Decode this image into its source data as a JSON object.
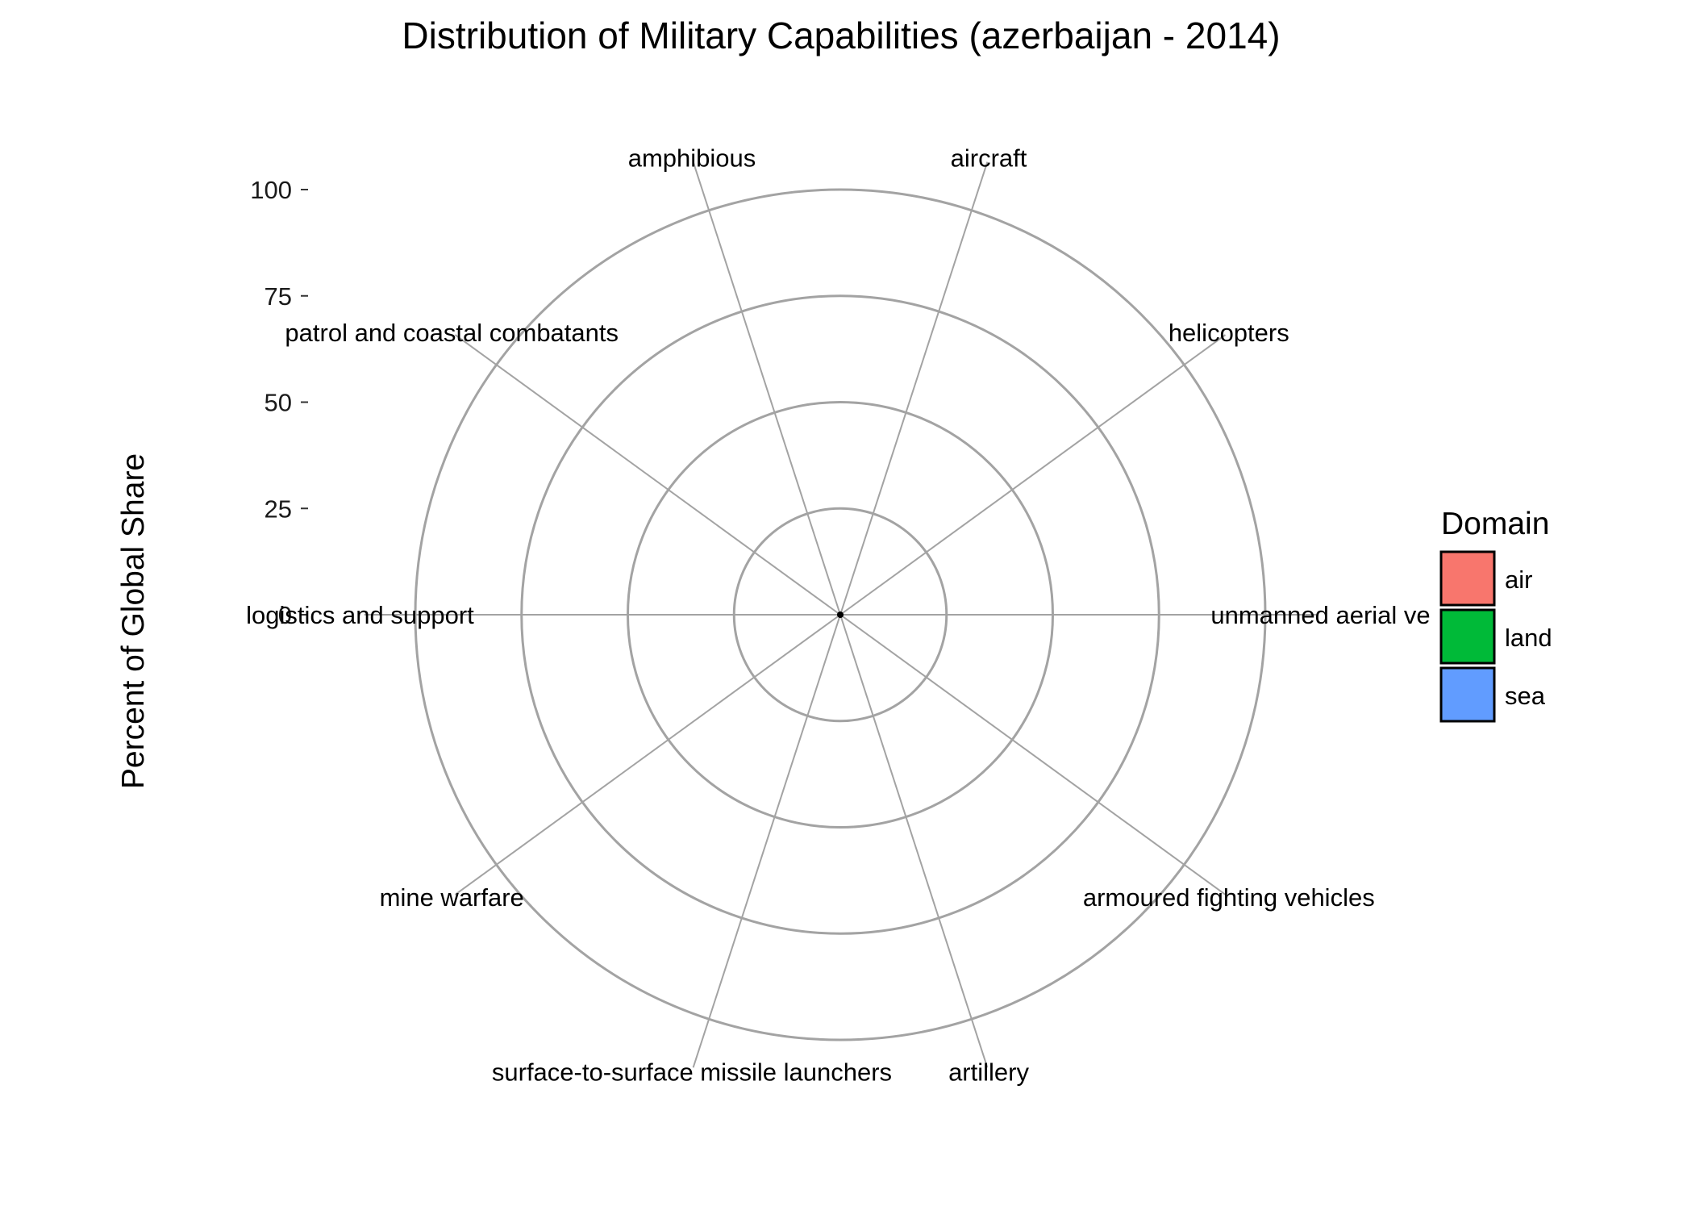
{
  "chart_data": {
    "type": "bar",
    "coord": "polar",
    "title": "Distribution of Military Capabilities (azerbaijan - 2014)",
    "xlabel": "",
    "ylabel": "Percent of Global Share",
    "ylim": [
      0,
      100
    ],
    "y_ticks": [
      "0",
      "25",
      "50",
      "75",
      "100"
    ],
    "y_tick_values": [
      0,
      25,
      50,
      75,
      100
    ],
    "categories": [
      "aircraft",
      "helicopters",
      "unmanned aerial ve",
      "armoured fighting vehicles",
      "artillery",
      "surface-to-surface missile launchers",
      "mine warfare",
      "logistics and support",
      "patrol and coastal combatants",
      "amphibious"
    ],
    "domains": [
      "air",
      "air",
      "air",
      "land",
      "land",
      "land",
      "sea",
      "sea",
      "sea",
      "sea"
    ],
    "values": [
      0,
      0,
      0,
      0,
      0,
      0,
      0,
      0,
      0,
      0
    ],
    "legend": {
      "title": "Domain",
      "position": "right",
      "entries": [
        {
          "label": "air",
          "color": "#F8766D"
        },
        {
          "label": "land",
          "color": "#00BA38"
        },
        {
          "label": "sea",
          "color": "#619CFF"
        }
      ]
    },
    "grid": true
  }
}
